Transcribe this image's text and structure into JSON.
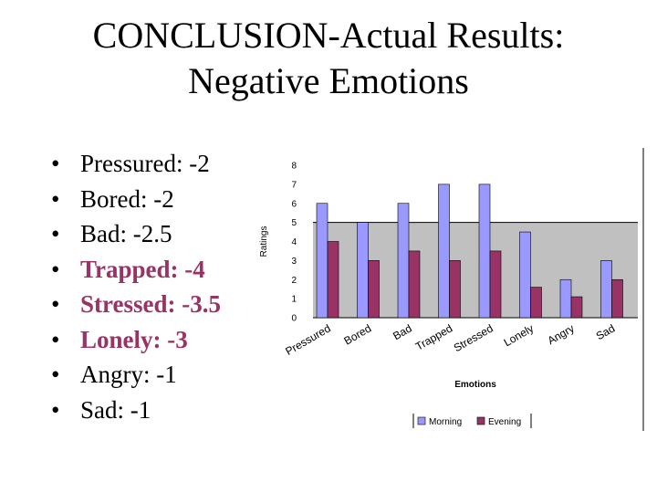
{
  "slide": {
    "title_lines": [
      "CONCLUSION-Actual Results:",
      "Negative Emotions"
    ]
  },
  "bullets": [
    {
      "text": "Pressured: -2",
      "bold": false
    },
    {
      "text": "Bored: -2",
      "bold": false
    },
    {
      "text": "Bad: -2.5",
      "bold": false
    },
    {
      "text": "Trapped: -4",
      "bold": true
    },
    {
      "text": "Stressed: -3.5",
      "bold": true
    },
    {
      "text": "Lonely: -3",
      "bold": true
    },
    {
      "text": "Angry: -1",
      "bold": false
    },
    {
      "text": "Sad: -1",
      "bold": false
    }
  ],
  "bullet_symbol": "•",
  "colors": {
    "morning": "#9999ff",
    "evening": "#993366",
    "highlight_text": "#993366",
    "plot_bg": "#c0c0c0"
  },
  "chart_data": {
    "type": "bar",
    "title": "",
    "xlabel": "Emotions",
    "ylabel": "Ratings",
    "ylim": [
      0,
      8
    ],
    "yticks": [
      0,
      1,
      2,
      3,
      4,
      5,
      6,
      7,
      8
    ],
    "categories": [
      "Pressured",
      "Bored",
      "Bad",
      "Trapped",
      "Stressed",
      "Lonely",
      "Angry",
      "Sad"
    ],
    "series": [
      {
        "name": "Morning",
        "values": [
          6,
          5,
          6,
          7,
          7,
          4.5,
          2,
          3
        ]
      },
      {
        "name": "Evening",
        "values": [
          4,
          3,
          3.5,
          3,
          3.5,
          1.6,
          1.1,
          2
        ]
      }
    ],
    "legend_position": "bottom-center"
  }
}
